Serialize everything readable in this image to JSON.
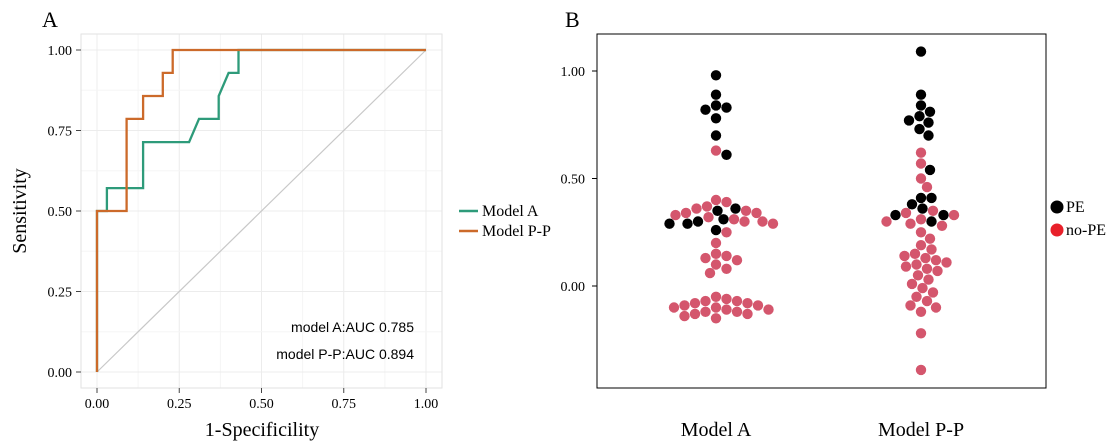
{
  "colors": {
    "model_a": "#2e9b7a",
    "model_pp": "#cc6a2a",
    "diagonal": "#c8c8c8",
    "grid": "#ececec",
    "pe_point": "#000000",
    "no_pe_point": "#d4566d",
    "no_pe_legend": "#e8202a"
  },
  "chart_data": [
    {
      "type": "line",
      "panel_label": "A",
      "xlabel": "1-Specificility",
      "ylabel": "Sensitivity",
      "xlim": [
        0,
        1
      ],
      "ylim": [
        0,
        1
      ],
      "x_ticks": [
        "0.00",
        "0.25",
        "0.50",
        "0.75",
        "1.00"
      ],
      "y_ticks": [
        "0.00",
        "0.25",
        "0.50",
        "0.75",
        "1.00"
      ],
      "grid": true,
      "legend_position": "right",
      "series": [
        {
          "name": "Model A",
          "x": [
            0,
            0,
            0.03,
            0.03,
            0.14,
            0.14,
            0.28,
            0.31,
            0.37,
            0.37,
            0.4,
            0.43,
            0.43,
            1.0
          ],
          "y": [
            0,
            0.5,
            0.5,
            0.571,
            0.571,
            0.714,
            0.714,
            0.786,
            0.786,
            0.857,
            0.929,
            0.929,
            1.0,
            1.0
          ]
        },
        {
          "name": "Model P-P",
          "x": [
            0,
            0,
            0.09,
            0.09,
            0.14,
            0.14,
            0.2,
            0.2,
            0.23,
            0.23,
            1.0
          ],
          "y": [
            0,
            0.5,
            0.5,
            0.786,
            0.786,
            0.857,
            0.857,
            0.929,
            0.929,
            1.0,
            1.0
          ]
        }
      ],
      "reference_line": {
        "x": [
          0,
          1
        ],
        "y": [
          0,
          1
        ]
      },
      "annotations": [
        "model A:AUC 0.785",
        "model P-P:AUC 0.894"
      ]
    },
    {
      "type": "scatter",
      "panel_label": "B",
      "categories": [
        "Model A",
        "Model P-P"
      ],
      "y_ticks": [
        "0.00",
        "0.50",
        "1.00"
      ],
      "ylim": [
        -0.42,
        1.15
      ],
      "grid": false,
      "legend_position": "right",
      "series": [
        {
          "name": "PE",
          "points": [
            {
              "category": "Model A",
              "values": [
                0.98,
                0.89,
                0.84,
                0.83,
                0.82,
                0.78,
                0.7,
                0.61,
                0.36,
                0.35,
                0.31,
                0.3,
                0.29,
                0.29,
                0.26
              ]
            },
            {
              "category": "Model P-P",
              "values": [
                1.09,
                0.89,
                0.84,
                0.81,
                0.79,
                0.77,
                0.76,
                0.73,
                0.7,
                0.54,
                0.41,
                0.41,
                0.38,
                0.36,
                0.33,
                0.33,
                0.3
              ]
            }
          ]
        },
        {
          "name": "no-PE",
          "points": [
            {
              "category": "Model A",
              "values": [
                0.63,
                0.4,
                0.39,
                0.37,
                0.36,
                0.35,
                0.34,
                0.34,
                0.33,
                0.32,
                0.31,
                0.3,
                0.3,
                0.29,
                0.25,
                0.2,
                0.15,
                0.14,
                0.13,
                0.12,
                0.1,
                0.08,
                0.06,
                -0.05,
                -0.06,
                -0.07,
                -0.07,
                -0.08,
                -0.08,
                -0.09,
                -0.09,
                -0.1,
                -0.1,
                -0.11,
                -0.11,
                -0.12,
                -0.12,
                -0.13,
                -0.13,
                -0.14,
                -0.15
              ]
            },
            {
              "category": "Model P-P",
              "values": [
                0.62,
                0.57,
                0.5,
                0.46,
                0.35,
                0.34,
                0.33,
                0.31,
                0.3,
                0.29,
                0.28,
                0.25,
                0.22,
                0.19,
                0.17,
                0.15,
                0.14,
                0.13,
                0.12,
                0.11,
                0.1,
                0.09,
                0.08,
                0.07,
                0.05,
                0.03,
                0.01,
                -0.01,
                -0.03,
                -0.05,
                -0.07,
                -0.09,
                -0.1,
                -0.12,
                -0.22,
                -0.39
              ]
            }
          ]
        }
      ]
    }
  ]
}
